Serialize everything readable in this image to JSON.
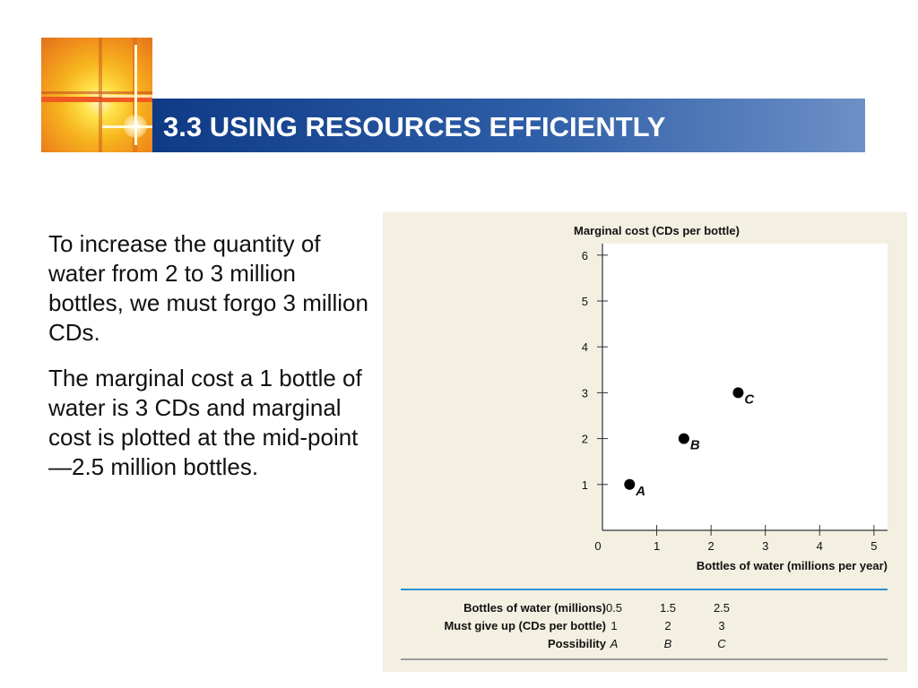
{
  "header": {
    "title": "3.3 USING RESOURCES EFFICIENTLY",
    "accent_color": "#1f4f9a",
    "logo_icon": "golden-window-cross-icon"
  },
  "body": {
    "paragraph1": "To increase the quantity of water from 2 to 3 million bottles, we must forgo 3 million CDs.",
    "paragraph2": "The marginal cost a 1 bottle of water is 3 CDs and marginal cost is plotted at the mid-point —2.5 million bottles."
  },
  "chart_data": {
    "type": "scatter",
    "ylabel": "Marginal cost (CDs per bottle)",
    "xlabel": "Bottles of water (millions per year)",
    "xlim": [
      0,
      5.25
    ],
    "ylim": [
      0,
      6.25
    ],
    "x_ticks": [
      "0",
      "1",
      "2",
      "3",
      "4",
      "5"
    ],
    "y_ticks": [
      "1",
      "2",
      "3",
      "4",
      "5",
      "6"
    ],
    "grid": false,
    "points": [
      {
        "label": "A",
        "x": 0.5,
        "y": 1
      },
      {
        "label": "B",
        "x": 1.5,
        "y": 2
      },
      {
        "label": "C",
        "x": 2.5,
        "y": 3
      }
    ],
    "table": {
      "rows": [
        {
          "label": "Bottles of water (millions)",
          "values": [
            "0.5",
            "1.5",
            "2.5"
          ]
        },
        {
          "label": "Must give up (CDs per bottle)",
          "values": [
            "1",
            "2",
            "3"
          ]
        },
        {
          "label": "Possibility",
          "values": [
            "A",
            "B",
            "C"
          ]
        }
      ]
    }
  }
}
